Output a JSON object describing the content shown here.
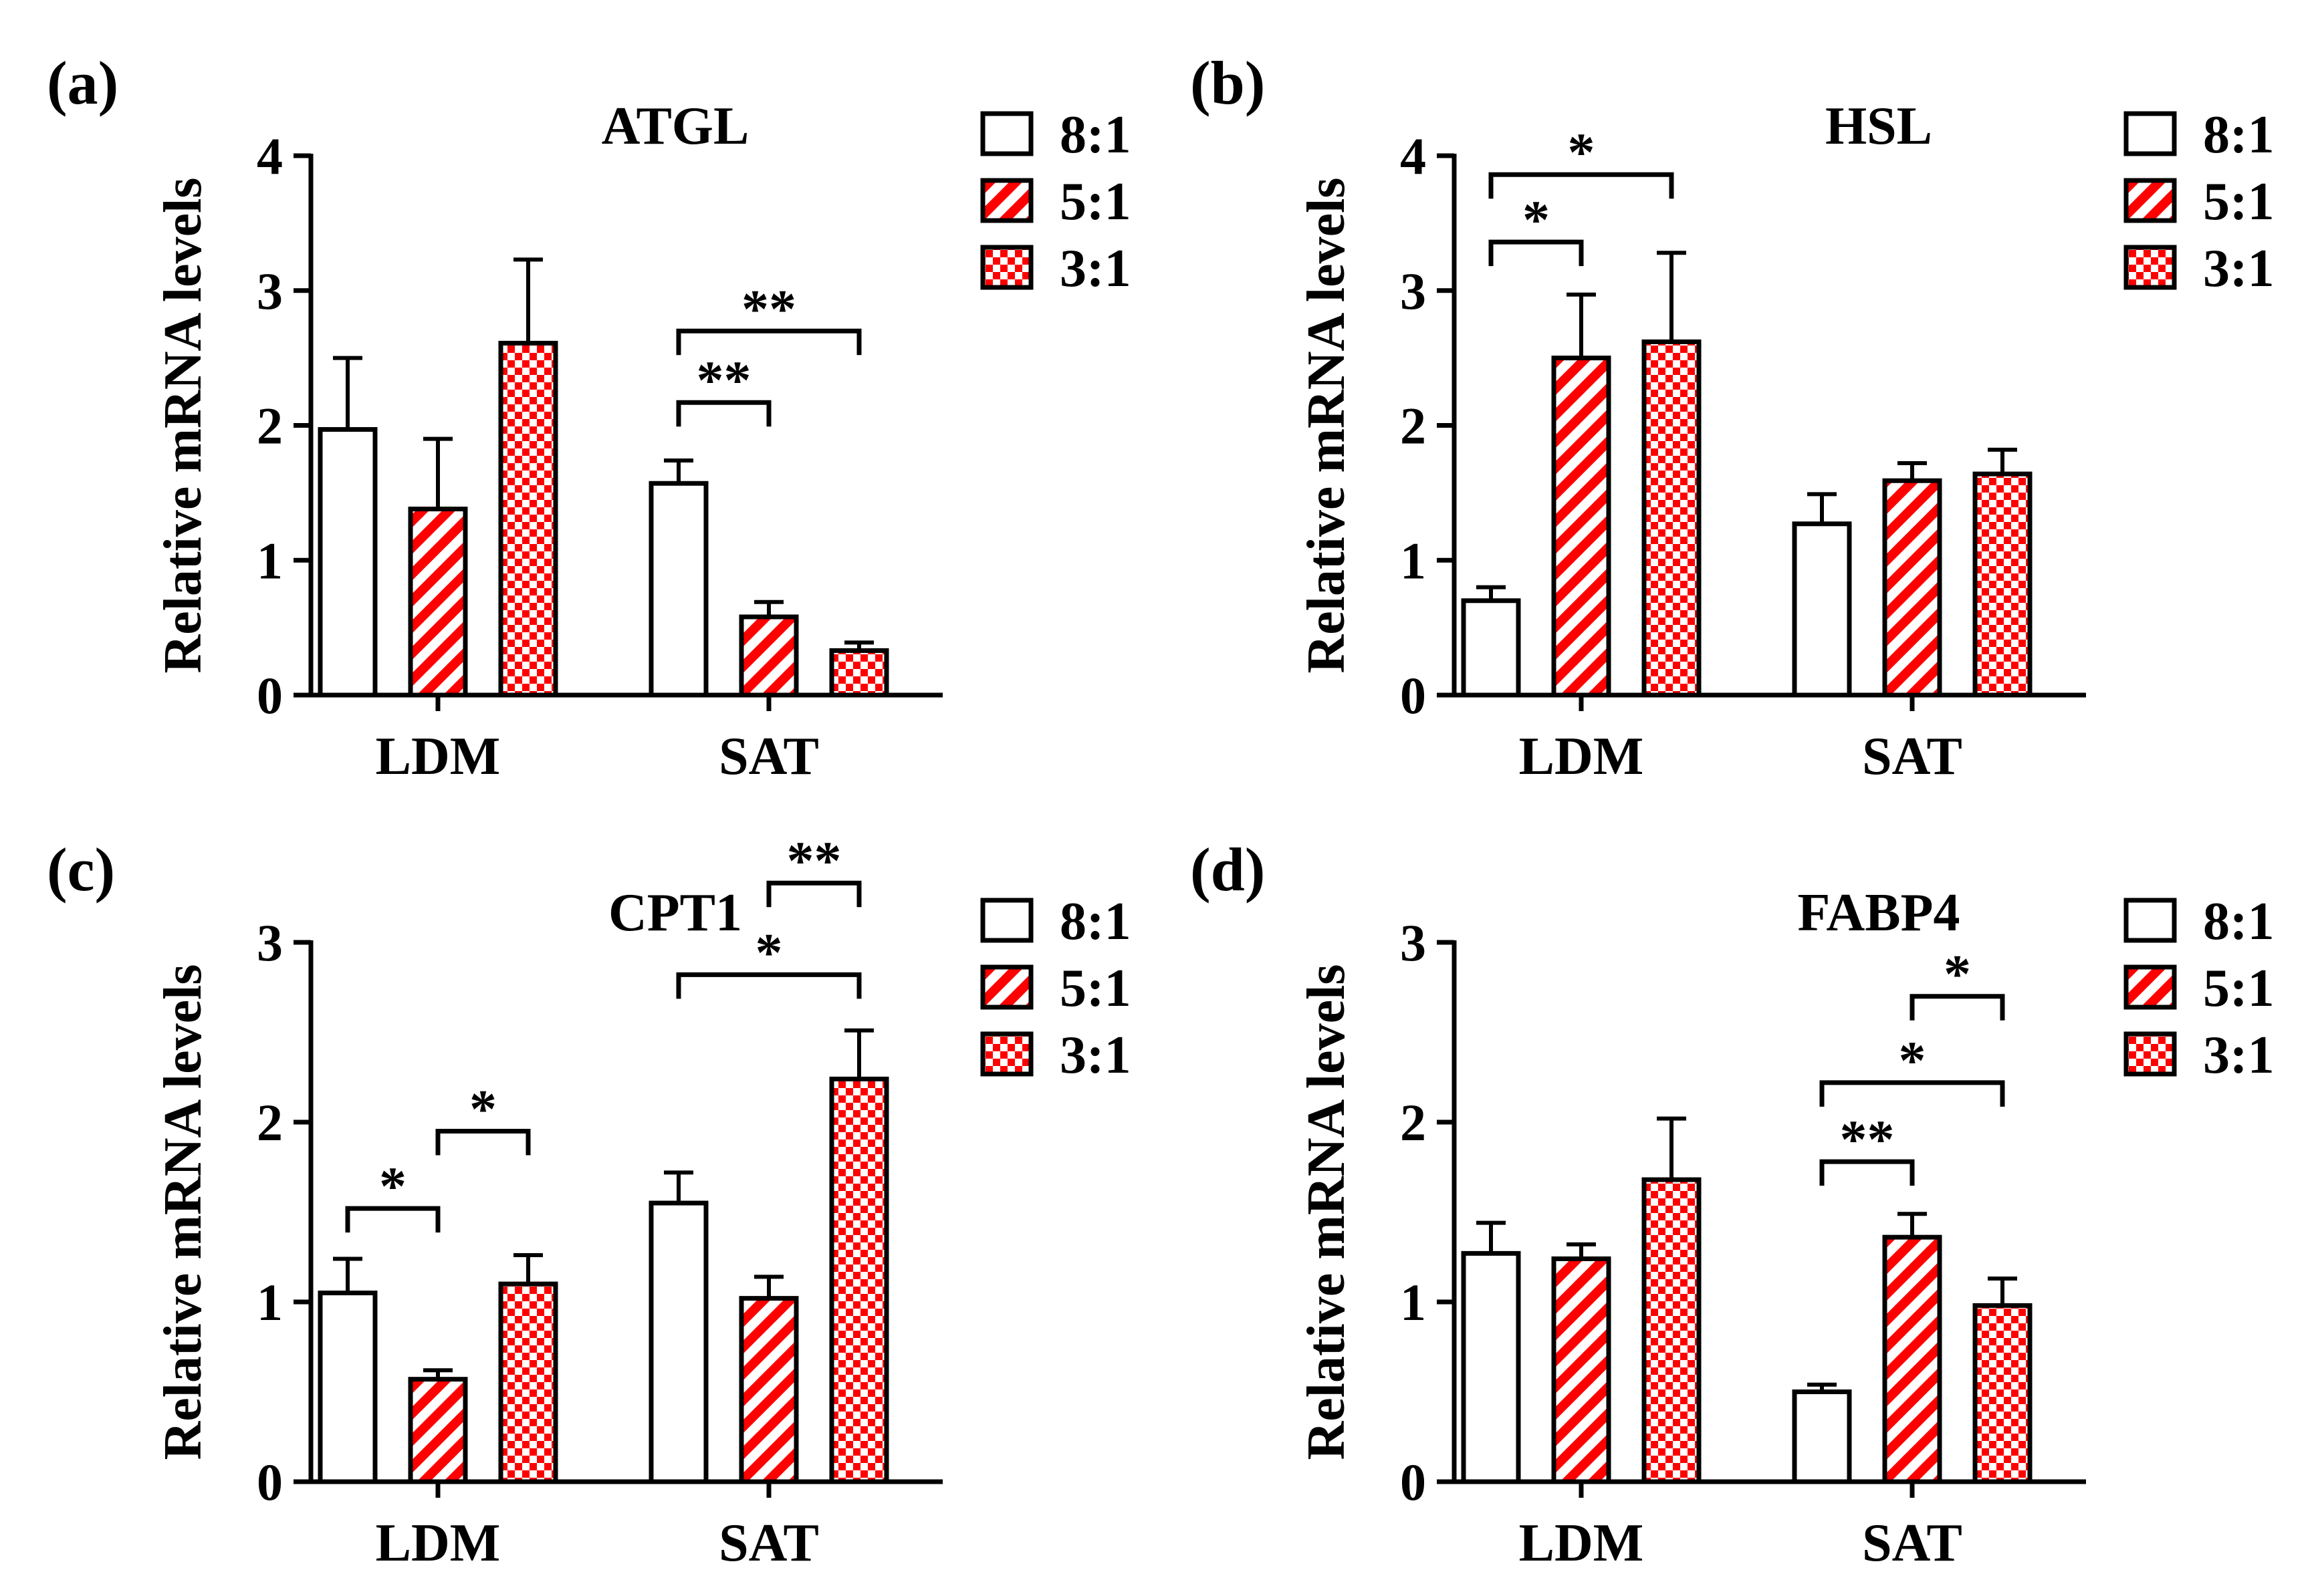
{
  "figure": {
    "style": {
      "bar_stroke": "#000000",
      "hatch_color": "#ff0000",
      "background": "#ffffff"
    }
  },
  "legend": {
    "entries": [
      "8:1",
      "5:1",
      "3:1"
    ],
    "patterns": [
      "open",
      "hatch",
      "checker"
    ]
  },
  "chart_data": [
    {
      "panel": "(a)",
      "type": "bar",
      "title": "ATGL",
      "ylabel": "Relative mRNA levels",
      "ylim": [
        0,
        4
      ],
      "yticks": [
        0,
        1,
        2,
        3,
        4
      ],
      "categories": [
        "LDM",
        "SAT"
      ],
      "series": [
        {
          "name": "8:1",
          "values": [
            1.97,
            1.57
          ],
          "errors": [
            0.53,
            0.17
          ]
        },
        {
          "name": "5:1",
          "values": [
            1.38,
            0.58
          ],
          "errors": [
            0.52,
            0.11
          ]
        },
        {
          "name": "3:1",
          "values": [
            2.61,
            0.33
          ],
          "errors": [
            0.62,
            0.06
          ]
        }
      ],
      "significance": [
        {
          "group": "SAT",
          "from": 0,
          "to": 1,
          "label": "**",
          "y": 2.17
        },
        {
          "group": "SAT",
          "from": 0,
          "to": 2,
          "label": "**",
          "y": 2.7
        }
      ]
    },
    {
      "panel": "(b)",
      "type": "bar",
      "title": "HSL",
      "ylabel": "Relative mRNA levels",
      "ylim": [
        0,
        4
      ],
      "yticks": [
        0,
        1,
        2,
        3,
        4
      ],
      "categories": [
        "LDM",
        "SAT"
      ],
      "series": [
        {
          "name": "8:1",
          "values": [
            0.7,
            1.27
          ],
          "errors": [
            0.1,
            0.22
          ]
        },
        {
          "name": "5:1",
          "values": [
            2.5,
            1.59
          ],
          "errors": [
            0.47,
            0.13
          ]
        },
        {
          "name": "3:1",
          "values": [
            2.62,
            1.64
          ],
          "errors": [
            0.66,
            0.18
          ]
        }
      ],
      "significance": [
        {
          "group": "LDM",
          "from": 0,
          "to": 1,
          "label": "*",
          "y": 3.36
        },
        {
          "group": "LDM",
          "from": 0,
          "to": 2,
          "label": "*",
          "y": 3.86
        }
      ]
    },
    {
      "panel": "(c)",
      "type": "bar",
      "title": "CPT1",
      "ylabel": "Relative mRNA levels",
      "ylim": [
        0,
        3
      ],
      "yticks": [
        0,
        1,
        2,
        3
      ],
      "categories": [
        "LDM",
        "SAT"
      ],
      "series": [
        {
          "name": "8:1",
          "values": [
            1.05,
            1.55
          ],
          "errors": [
            0.19,
            0.17
          ]
        },
        {
          "name": "5:1",
          "values": [
            0.57,
            1.02
          ],
          "errors": [
            0.05,
            0.12
          ]
        },
        {
          "name": "3:1",
          "values": [
            1.1,
            2.24
          ],
          "errors": [
            0.16,
            0.27
          ]
        }
      ],
      "significance": [
        {
          "group": "LDM",
          "from": 0,
          "to": 1,
          "label": "*",
          "y": 1.52
        },
        {
          "group": "LDM",
          "from": 1,
          "to": 2,
          "label": "*",
          "y": 1.95
        },
        {
          "group": "SAT",
          "from": 0,
          "to": 2,
          "label": "*",
          "y": 2.82
        },
        {
          "group": "SAT",
          "from": 1,
          "to": 2,
          "label": "**",
          "y": 3.33
        }
      ]
    },
    {
      "panel": "(d)",
      "type": "bar",
      "title": "FABP4",
      "ylabel": "Relative mRNA levels",
      "ylim": [
        0,
        3
      ],
      "yticks": [
        0,
        1,
        2,
        3
      ],
      "categories": [
        "LDM",
        "SAT"
      ],
      "series": [
        {
          "name": "8:1",
          "values": [
            1.27,
            0.5
          ],
          "errors": [
            0.17,
            0.04
          ]
        },
        {
          "name": "5:1",
          "values": [
            1.24,
            1.36
          ],
          "errors": [
            0.08,
            0.13
          ]
        },
        {
          "name": "3:1",
          "values": [
            1.68,
            0.98
          ],
          "errors": [
            0.34,
            0.15
          ]
        }
      ],
      "significance": [
        {
          "group": "SAT",
          "from": 0,
          "to": 1,
          "label": "**",
          "y": 1.78
        },
        {
          "group": "SAT",
          "from": 0,
          "to": 2,
          "label": "*",
          "y": 2.22
        },
        {
          "group": "SAT",
          "from": 1,
          "to": 2,
          "label": "*",
          "y": 2.7
        }
      ]
    }
  ]
}
